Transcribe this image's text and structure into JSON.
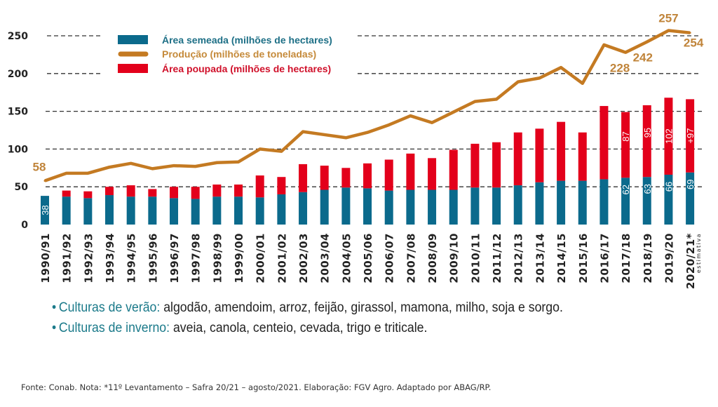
{
  "chart_data": {
    "type": "bar+line",
    "categories": [
      "1990/91",
      "1991/92",
      "1992/93",
      "1993/94",
      "1994/95",
      "1995/96",
      "1996/97",
      "1997/98",
      "1998/99",
      "1999/00",
      "2000/01",
      "2001/02",
      "2002/03",
      "2003/04",
      "2004/05",
      "2005/06",
      "2006/07",
      "2007/08",
      "2008/09",
      "2009/10",
      "2010/11",
      "2011/12",
      "2012/13",
      "2013/14",
      "2014/15",
      "2015/16",
      "2016/17",
      "2017/18",
      "2018/19",
      "2019/20",
      "2020/21*"
    ],
    "category_note": "estimativa",
    "yticks": [
      0,
      50,
      100,
      150,
      200,
      250
    ],
    "ylim": [
      0,
      265
    ],
    "grid": "dashed horizontal",
    "legend_placement": "top-left",
    "series": [
      {
        "name": "Área semeada (milhões de hectares)",
        "type": "stacked-bar",
        "color": "#0b6a8c",
        "values": [
          38,
          37,
          35,
          39,
          37,
          37,
          35,
          34,
          37,
          37,
          36,
          40,
          43,
          46,
          49,
          48,
          45,
          46,
          46,
          46,
          49,
          49,
          52,
          56,
          58,
          58,
          60,
          62,
          63,
          66,
          69
        ]
      },
      {
        "name": "Área poupada (milhões de hectares)",
        "type": "stacked-bar",
        "color": "#e3001b",
        "values": [
          0,
          8,
          9,
          11,
          15,
          10,
          15,
          16,
          16,
          16,
          29,
          23,
          37,
          32,
          26,
          33,
          41,
          48,
          42,
          53,
          58,
          60,
          70,
          71,
          78,
          64,
          97,
          87,
          95,
          102,
          97
        ]
      },
      {
        "name": "Produção (milhões de toneladas)",
        "type": "line",
        "color": "#c47a22",
        "values": [
          58,
          68,
          68,
          76,
          81,
          74,
          78,
          77,
          82,
          83,
          100,
          97,
          123,
          119,
          115,
          122,
          132,
          144,
          135,
          149,
          163,
          166,
          189,
          194,
          208,
          187,
          238,
          228,
          242,
          257,
          254
        ]
      }
    ],
    "bar_labels": [
      {
        "category": "1990/91",
        "series": "Área semeada (milhões de hectares)",
        "text": "38"
      },
      {
        "category": "2017/18",
        "series": "Área semeada (milhões de hectares)",
        "text": "62"
      },
      {
        "category": "2018/19",
        "series": "Área semeada (milhões de hectares)",
        "text": "63"
      },
      {
        "category": "2019/20",
        "series": "Área semeada (milhões de hectares)",
        "text": "66"
      },
      {
        "category": "2020/21*",
        "series": "Área semeada (milhões de hectares)",
        "text": "69"
      },
      {
        "category": "2017/18",
        "series": "Área poupada (milhões de hectares)",
        "text": "87"
      },
      {
        "category": "2018/19",
        "series": "Área poupada (milhões de hectares)",
        "text": "95"
      },
      {
        "category": "2019/20",
        "series": "Área poupada (milhões de hectares)",
        "text": "102"
      },
      {
        "category": "2020/21*",
        "series": "Área poupada (milhões de hectares)",
        "text": "+97"
      }
    ],
    "line_labels": [
      {
        "category": "1990/91",
        "text": "58"
      },
      {
        "category": "2017/18",
        "text": "228"
      },
      {
        "category": "2018/19",
        "text": "242"
      },
      {
        "category": "2019/20",
        "text": "257"
      },
      {
        "category": "2020/21*",
        "text": "254"
      }
    ]
  },
  "notes": {
    "summer_key": "Culturas de verão:",
    "summer_list": " algodão, amendoim, arroz, feijão, girassol, mamona, milho, soja e sorgo.",
    "winter_key": "Culturas de inverno:",
    "winter_list": " aveia, canola, centeio, cevada, trigo e triticale.",
    "bullet": "•"
  },
  "source": "Fonte: Conab. Nota: *11º Levantamento – Safra 20/21 – agosto/2021. Elaboração: FGV Agro. Adaptado por ABAG/RP."
}
